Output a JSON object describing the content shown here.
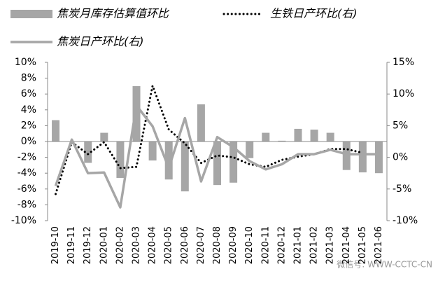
{
  "chart_data": {
    "type": "bar",
    "categories": [
      "2019-10",
      "2019-11",
      "2019-12",
      "2020-01",
      "2020-02",
      "2020-03",
      "2020-04",
      "2020-05",
      "2020-06",
      "2020-07",
      "2020-08",
      "2020-09",
      "2020-10",
      "2020-11",
      "2020-12",
      "2021-01",
      "2021-02",
      "2021-03",
      "2021-04",
      "2021-05",
      "2021-06"
    ],
    "series": [
      {
        "name": "焦炭月库存估算值环比",
        "type": "bar",
        "color": "#a6a6a6",
        "values": [
          2.7,
          0,
          -2.7,
          1.1,
          -4.6,
          7.0,
          -2.4,
          -4.8,
          -6.3,
          4.7,
          -5.5,
          -5.2,
          -2.1,
          1.1,
          0.1,
          1.6,
          1.5,
          1.1,
          -3.6,
          -3.9,
          -4.0
        ]
      },
      {
        "name": "生铁日产环比(右)",
        "type": "line",
        "style": "dotted",
        "axis": "y2",
        "color": "#000000",
        "values": [
          -5.8,
          2.4,
          0.5,
          2.4,
          -1.7,
          -1.5,
          11.3,
          4.4,
          2.2,
          -0.9,
          0.3,
          0,
          -1.1,
          -1.5,
          -0.4,
          0.1,
          0.5,
          1.3,
          1.3,
          0.7,
          null
        ]
      },
      {
        "name": "焦炭日产环比(右)",
        "type": "line",
        "style": "solid",
        "axis": "y2",
        "color": "#a6a6a6",
        "values": [
          -4.5,
          2.8,
          -2.5,
          -2.4,
          -7.9,
          8.2,
          4.9,
          -1.7,
          6.2,
          -3.8,
          3.2,
          1.6,
          -0.6,
          -1.9,
          -1.1,
          0.5,
          0.5,
          1.2,
          0.5,
          0.5,
          0.5
        ]
      }
    ],
    "ylim": [
      -10,
      10
    ],
    "yticks": [
      {
        "value": -10,
        "label": "-10%"
      },
      {
        "value": -8,
        "label": "-8%"
      },
      {
        "value": -6,
        "label": "-6%"
      },
      {
        "value": -4,
        "label": "-4%"
      },
      {
        "value": -2,
        "label": "-2%"
      },
      {
        "value": 0,
        "label": "0%"
      },
      {
        "value": 2,
        "label": "2%"
      },
      {
        "value": 4,
        "label": "4%"
      },
      {
        "value": 6,
        "label": "6%"
      },
      {
        "value": 8,
        "label": "8%"
      },
      {
        "value": 10,
        "label": "10%"
      }
    ],
    "y2lim": [
      -10,
      15
    ],
    "y2ticks": [
      {
        "value": -10,
        "label": "-10%"
      },
      {
        "value": -5,
        "label": "-5%"
      },
      {
        "value": 0,
        "label": "0%"
      },
      {
        "value": 5,
        "label": "5%"
      },
      {
        "value": 10,
        "label": "10%"
      },
      {
        "value": 15,
        "label": "15%"
      }
    ],
    "annotation": "微信号: WWW-CCTC-CN"
  }
}
